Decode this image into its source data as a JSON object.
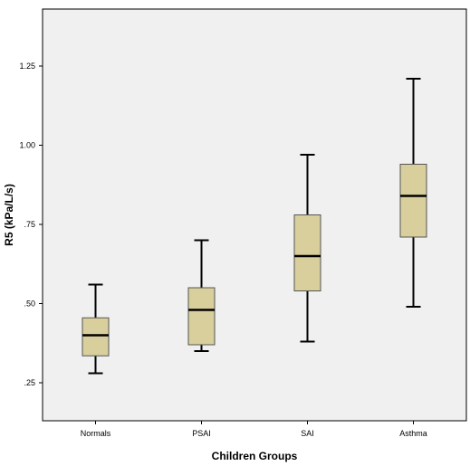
{
  "chart_data": {
    "type": "box",
    "xlabel": "Children Groups",
    "ylabel": "R5 (kPa/L/s)",
    "ylim": [
      0.13,
      1.43
    ],
    "yticks": [
      0.25,
      0.5,
      0.75,
      1.0,
      1.25
    ],
    "ytick_labels": [
      ".25",
      ".50",
      ".75",
      "1.00",
      "1.25"
    ],
    "grid": false,
    "categories": [
      "Normals",
      "PSAI",
      "SAI",
      "Asthma"
    ],
    "boxes": [
      {
        "label": "Normals",
        "min": 0.28,
        "q1": 0.335,
        "median": 0.4,
        "q3": 0.455,
        "max": 0.56
      },
      {
        "label": "PSAI",
        "min": 0.35,
        "q1": 0.37,
        "median": 0.48,
        "q3": 0.55,
        "max": 0.7
      },
      {
        "label": "SAI",
        "min": 0.38,
        "q1": 0.54,
        "median": 0.65,
        "q3": 0.78,
        "max": 0.97
      },
      {
        "label": "Asthma",
        "min": 0.49,
        "q1": 0.71,
        "median": 0.84,
        "q3": 0.94,
        "max": 1.21
      }
    ],
    "colors": {
      "plot_background": "#f0f0f0",
      "box_fill": "#d8cf9c",
      "box_stroke": "#555555",
      "whisker": "#000000",
      "median": "#000000"
    }
  }
}
